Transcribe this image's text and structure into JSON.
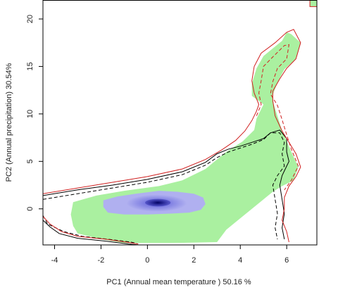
{
  "chart_data": {
    "type": "area",
    "title": "",
    "xlabel": "PC1 (Annual mean temperature ) 50.16 %",
    "ylabel": "PC2 (Annual precipitation) 30.54%",
    "xlim": [
      -4.5,
      7.3
    ],
    "ylim": [
      -3.8,
      22.0
    ],
    "xticks": [
      -4,
      -2,
      0,
      2,
      4,
      6
    ],
    "xtick_labels": [
      "-4",
      "-2",
      "0",
      "2",
      "4",
      "6"
    ],
    "yticks": [
      0,
      5,
      10,
      15,
      20
    ],
    "ytick_labels": [
      "0",
      "5",
      "10",
      "15",
      "20"
    ],
    "grid": false,
    "legend": "none",
    "colors": {
      "niche_fill": "#aaf0a0",
      "density_low": "#b0b0f0",
      "density_high": "#000060",
      "contour_red": "#d02020",
      "contour_black": "#000000",
      "axis": "#000000"
    },
    "series": [
      {
        "kind": "polygon",
        "role": "green-area",
        "points": [
          [
            -3.2,
            0.7
          ],
          [
            -2.2,
            1.4
          ],
          [
            -1.0,
            1.9
          ],
          [
            0.5,
            2.4
          ],
          [
            1.5,
            3.0
          ],
          [
            2.5,
            4.2
          ],
          [
            3.0,
            5.2
          ],
          [
            3.4,
            6.0
          ],
          [
            4.1,
            7.1
          ],
          [
            4.6,
            8.3
          ],
          [
            4.7,
            9.5
          ],
          [
            5.0,
            11.0
          ],
          [
            4.5,
            11.9
          ],
          [
            4.5,
            13.2
          ],
          [
            4.7,
            14.8
          ],
          [
            5.0,
            16.1
          ],
          [
            5.8,
            17.7
          ],
          [
            6.0,
            18.6
          ],
          [
            6.2,
            18.4
          ],
          [
            6.6,
            17.5
          ],
          [
            6.4,
            15.8
          ],
          [
            5.9,
            14.7
          ],
          [
            5.6,
            13.3
          ],
          [
            5.4,
            12.0
          ],
          [
            5.4,
            11.3
          ],
          [
            5.6,
            9.8
          ],
          [
            5.8,
            8.2
          ],
          [
            6.2,
            6.0
          ],
          [
            6.5,
            4.4
          ],
          [
            6.3,
            3.0
          ],
          [
            5.8,
            2.4
          ],
          [
            5.4,
            1.8
          ],
          [
            4.9,
            0.8
          ],
          [
            4.1,
            -0.8
          ],
          [
            3.4,
            -2.2
          ],
          [
            3.0,
            -3.5
          ],
          [
            1.0,
            -3.6
          ],
          [
            -1.0,
            -3.6
          ],
          [
            -2.0,
            -3.2
          ],
          [
            -3.0,
            -2.6
          ],
          [
            -3.2,
            -1.8
          ],
          [
            -3.3,
            -0.6
          ]
        ]
      },
      {
        "kind": "polygon",
        "role": "green-corner",
        "points": [
          [
            7.0,
            21.3
          ],
          [
            7.3,
            21.3
          ],
          [
            7.3,
            22.0
          ],
          [
            7.0,
            22.0
          ]
        ]
      },
      {
        "kind": "polygon",
        "role": "density-low",
        "points": [
          [
            -1.9,
            0.9
          ],
          [
            -1.3,
            1.3
          ],
          [
            -0.5,
            1.6
          ],
          [
            0.5,
            1.9
          ],
          [
            1.3,
            1.8
          ],
          [
            2.0,
            1.6
          ],
          [
            2.4,
            1.2
          ],
          [
            2.5,
            0.5
          ],
          [
            2.3,
            -0.1
          ],
          [
            1.8,
            -0.4
          ],
          [
            1.0,
            -0.5
          ],
          [
            0.0,
            -0.6
          ],
          [
            -1.0,
            -0.6
          ],
          [
            -1.7,
            -0.4
          ],
          [
            -1.9,
            0.2
          ]
        ]
      },
      {
        "kind": "ellipse",
        "role": "density-mid",
        "center": [
          0.4,
          0.6
        ],
        "radii": [
          1.3,
          0.9
        ]
      },
      {
        "kind": "ellipse",
        "role": "density-high",
        "center": [
          0.45,
          0.65
        ],
        "radii": [
          0.55,
          0.4
        ]
      },
      {
        "kind": "polyline",
        "role": "black-solid-contour",
        "points": [
          [
            -4.5,
            1.4
          ],
          [
            -3.0,
            2.0
          ],
          [
            -1.5,
            2.5
          ],
          [
            0.0,
            3.1
          ],
          [
            1.5,
            3.9
          ],
          [
            2.5,
            4.9
          ],
          [
            3.0,
            5.8
          ],
          [
            3.5,
            6.3
          ],
          [
            4.0,
            6.6
          ],
          [
            4.5,
            7.0
          ],
          [
            5.0,
            7.4
          ],
          [
            5.3,
            8.0
          ],
          [
            5.7,
            8.3
          ],
          [
            6.0,
            7.4
          ],
          [
            6.0,
            6.0
          ],
          [
            6.1,
            5.0
          ],
          [
            6.0,
            4.5
          ],
          [
            5.8,
            3.5
          ],
          [
            5.7,
            2.5
          ],
          [
            5.8,
            1.0
          ],
          [
            5.9,
            -0.5
          ],
          [
            5.8,
            -2.0
          ],
          [
            5.9,
            -3.2
          ]
        ]
      },
      {
        "kind": "polyline",
        "role": "black-dashed-contour",
        "points": [
          [
            -4.5,
            1.0
          ],
          [
            -3.0,
            1.6
          ],
          [
            -1.5,
            2.2
          ],
          [
            0.0,
            2.8
          ],
          [
            1.5,
            3.6
          ],
          [
            2.5,
            4.6
          ],
          [
            3.0,
            5.4
          ],
          [
            3.5,
            6.0
          ],
          [
            4.0,
            6.4
          ],
          [
            4.5,
            6.8
          ],
          [
            5.0,
            7.3
          ],
          [
            5.3,
            8.0
          ],
          [
            5.7,
            8.0
          ],
          [
            5.9,
            7.0
          ],
          [
            5.8,
            5.8
          ],
          [
            5.9,
            4.5
          ],
          [
            5.6,
            3.5
          ],
          [
            5.4,
            2.5
          ],
          [
            5.5,
            1.0
          ],
          [
            5.6,
            -0.5
          ],
          [
            5.5,
            -2.0
          ],
          [
            5.6,
            -3.2
          ]
        ]
      },
      {
        "kind": "polyline",
        "role": "black-solid-lower",
        "points": [
          [
            -4.5,
            -1.2
          ],
          [
            -4.2,
            -1.9
          ],
          [
            -3.8,
            -2.6
          ],
          [
            -3.0,
            -3.1
          ],
          [
            -1.8,
            -3.4
          ],
          [
            -0.8,
            -3.7
          ],
          [
            -0.4,
            -3.8
          ]
        ]
      },
      {
        "kind": "polyline",
        "role": "black-dashed-lower",
        "points": [
          [
            -4.5,
            -0.7
          ],
          [
            -4.3,
            -1.6
          ],
          [
            -3.6,
            -2.4
          ],
          [
            -2.8,
            -2.9
          ],
          [
            -1.7,
            -3.2
          ],
          [
            -0.7,
            -3.5
          ],
          [
            -0.4,
            -3.7
          ]
        ]
      },
      {
        "kind": "polyline",
        "role": "red-solid-contour",
        "points": [
          [
            -4.5,
            1.6
          ],
          [
            -3.0,
            2.2
          ],
          [
            -1.5,
            2.8
          ],
          [
            0.0,
            3.4
          ],
          [
            1.5,
            4.2
          ],
          [
            2.5,
            5.2
          ],
          [
            3.2,
            6.2
          ],
          [
            3.8,
            7.2
          ],
          [
            4.2,
            8.2
          ],
          [
            4.5,
            9.3
          ],
          [
            4.7,
            10.3
          ],
          [
            4.8,
            11.0
          ],
          [
            4.6,
            12.2
          ],
          [
            4.5,
            13.5
          ],
          [
            4.6,
            15.0
          ],
          [
            4.9,
            16.4
          ],
          [
            5.5,
            17.5
          ],
          [
            6.0,
            18.6
          ],
          [
            6.3,
            18.9
          ],
          [
            6.6,
            17.5
          ],
          [
            6.4,
            15.8
          ],
          [
            6.0,
            14.8
          ],
          [
            5.7,
            13.7
          ],
          [
            5.4,
            12.4
          ],
          [
            5.4,
            11.4
          ],
          [
            5.5,
            9.8
          ],
          [
            5.8,
            8.2
          ],
          [
            6.1,
            7.0
          ],
          [
            6.4,
            5.8
          ],
          [
            6.6,
            4.4
          ],
          [
            6.4,
            3.4
          ],
          [
            6.1,
            2.4
          ],
          [
            5.9,
            1.2
          ],
          [
            5.9,
            0.0
          ],
          [
            5.8,
            -1.2
          ],
          [
            6.0,
            -2.4
          ],
          [
            6.1,
            -3.5
          ]
        ]
      },
      {
        "kind": "polyline",
        "role": "red-dashed-contour",
        "points": [
          [
            4.7,
            9.8
          ],
          [
            4.9,
            11.0
          ],
          [
            4.8,
            12.2
          ],
          [
            4.9,
            13.5
          ],
          [
            5.0,
            15.0
          ],
          [
            5.4,
            16.0
          ],
          [
            5.9,
            17.2
          ],
          [
            6.1,
            17.3
          ],
          [
            6.0,
            15.8
          ],
          [
            5.6,
            14.8
          ],
          [
            5.4,
            13.4
          ],
          [
            5.3,
            12.1
          ],
          [
            5.6,
            10.9
          ],
          [
            5.8,
            9.4
          ],
          [
            6.0,
            7.8
          ],
          [
            6.2,
            6.3
          ],
          [
            6.5,
            4.5
          ],
          [
            6.2,
            3.0
          ],
          [
            5.9,
            2.0
          ]
        ]
      },
      {
        "kind": "polyline",
        "role": "red-solid-lower",
        "points": [
          [
            -4.5,
            -0.8
          ],
          [
            -4.2,
            -1.6
          ],
          [
            -3.7,
            -2.4
          ],
          [
            -3.0,
            -2.9
          ],
          [
            -1.8,
            -3.2
          ],
          [
            -0.9,
            -3.5
          ],
          [
            -0.4,
            -3.7
          ]
        ]
      }
    ]
  }
}
